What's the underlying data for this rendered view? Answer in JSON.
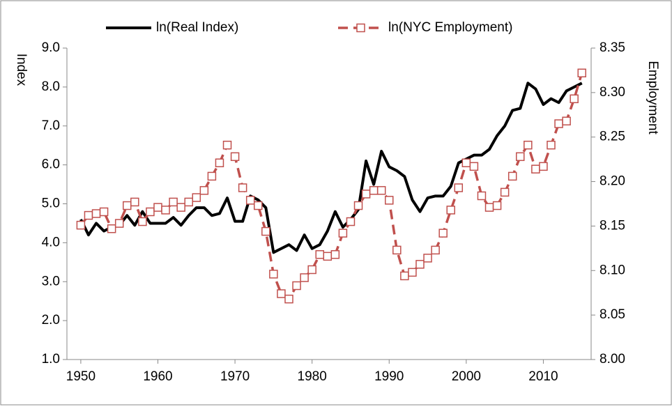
{
  "chart_data": {
    "type": "line",
    "x": [
      1950,
      1951,
      1952,
      1953,
      1954,
      1955,
      1956,
      1957,
      1958,
      1959,
      1960,
      1961,
      1962,
      1963,
      1964,
      1965,
      1966,
      1967,
      1968,
      1969,
      1970,
      1971,
      1972,
      1973,
      1974,
      1975,
      1976,
      1977,
      1978,
      1979,
      1980,
      1981,
      1982,
      1983,
      1984,
      1985,
      1986,
      1987,
      1988,
      1989,
      1990,
      1991,
      1992,
      1993,
      1994,
      1995,
      1996,
      1997,
      1998,
      1999,
      2000,
      2001,
      2002,
      2003,
      2004,
      2005,
      2006,
      2007,
      2008,
      2009,
      2010,
      2011,
      2012,
      2013,
      2014,
      2015
    ],
    "series": [
      {
        "name": "ln(Real Index)",
        "color": "#000000",
        "axis": "y",
        "dashed": false,
        "marker": false,
        "values": [
          4.6,
          4.2,
          4.5,
          4.3,
          4.4,
          4.45,
          4.7,
          4.45,
          4.8,
          4.5,
          4.5,
          4.5,
          4.65,
          4.45,
          4.7,
          4.9,
          4.9,
          4.7,
          4.75,
          5.15,
          4.55,
          4.55,
          5.2,
          5.1,
          4.9,
          3.75,
          3.85,
          3.95,
          3.8,
          4.2,
          3.85,
          3.95,
          4.3,
          4.8,
          4.4,
          4.6,
          4.85,
          6.1,
          5.5,
          6.35,
          5.95,
          5.85,
          5.7,
          5.1,
          4.8,
          5.15,
          5.2,
          5.2,
          5.45,
          6.05,
          6.15,
          6.25,
          6.25,
          6.4,
          6.75,
          7.0,
          7.4,
          7.45,
          8.1,
          7.95,
          7.55,
          7.7,
          7.6,
          7.9,
          8.0,
          8.1
        ]
      },
      {
        "name": "ln(NYC Employment)",
        "color": "#c0504d",
        "axis": "y2",
        "dashed": true,
        "marker": true,
        "values": [
          8.151,
          8.162,
          8.164,
          8.166,
          8.147,
          8.153,
          8.173,
          8.177,
          8.155,
          8.166,
          8.171,
          8.168,
          8.177,
          8.171,
          8.177,
          8.182,
          8.19,
          8.206,
          8.221,
          8.241,
          8.228,
          8.193,
          8.179,
          8.173,
          8.144,
          8.096,
          8.074,
          8.068,
          8.083,
          8.092,
          8.101,
          8.118,
          8.116,
          8.118,
          8.142,
          8.155,
          8.173,
          8.186,
          8.19,
          8.19,
          8.179,
          8.123,
          8.094,
          8.098,
          8.107,
          8.114,
          8.123,
          8.142,
          8.168,
          8.193,
          8.221,
          8.217,
          8.184,
          8.171,
          8.173,
          8.188,
          8.206,
          8.228,
          8.241,
          8.214,
          8.217,
          8.241,
          8.265,
          8.268,
          8.293,
          8.322
        ]
      }
    ],
    "y_label": "Index",
    "y2_label": "Employment",
    "xlim": [
      1948.2,
      2016.2
    ],
    "xticks": [
      1950,
      1960,
      1970,
      1980,
      1990,
      2000,
      2010
    ],
    "ylim": [
      1,
      9
    ],
    "yticks": [
      {
        "value": 1,
        "label": "1.0"
      },
      {
        "value": 2,
        "label": "2.0"
      },
      {
        "value": 3,
        "label": "3.0"
      },
      {
        "value": 4,
        "label": "4.0"
      },
      {
        "value": 5,
        "label": "5.0"
      },
      {
        "value": 6,
        "label": "6.0"
      },
      {
        "value": 7,
        "label": "7.0"
      },
      {
        "value": 8,
        "label": "8.0"
      },
      {
        "value": 9,
        "label": "9.0"
      }
    ],
    "y2lim": [
      8,
      8.35
    ],
    "y2ticks": [
      {
        "value": 8,
        "label": "8.00"
      },
      8.05,
      {
        "value": 8.1,
        "label": "8.10"
      },
      8.15,
      {
        "value": 8.2,
        "label": "8.20"
      },
      8.25,
      {
        "value": 8.3,
        "label": "8.30"
      },
      8.35
    ],
    "grid": false,
    "legend": "top"
  }
}
